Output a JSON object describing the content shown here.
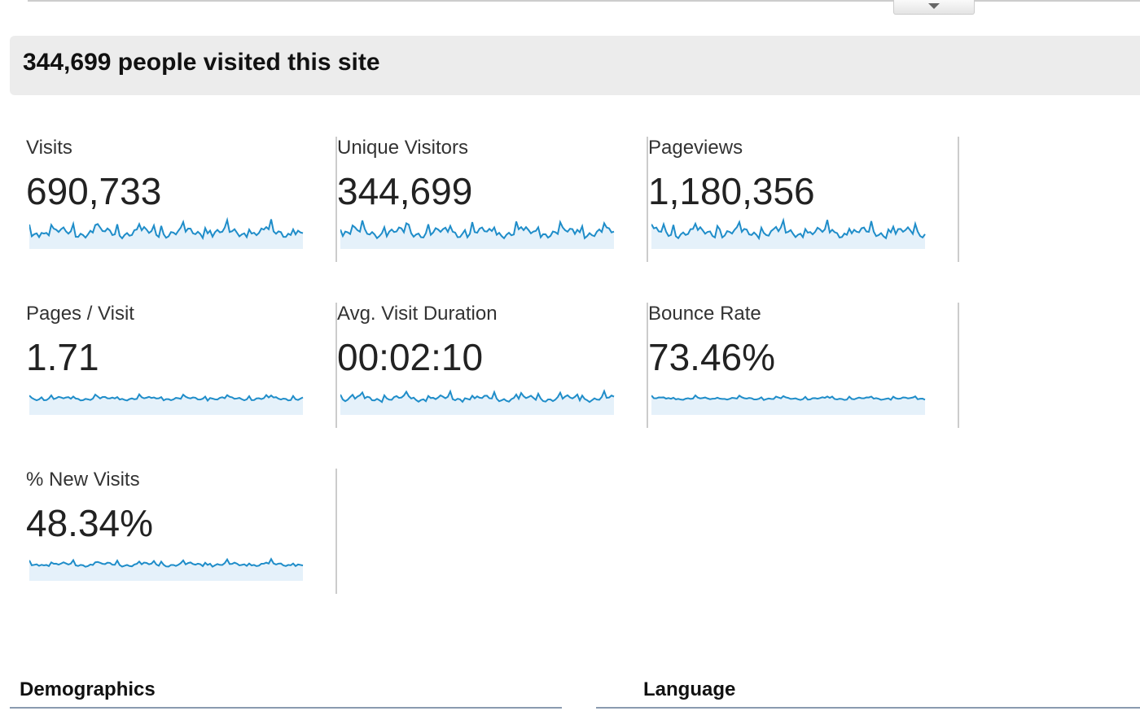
{
  "header": {
    "title": "344,699 people visited this site"
  },
  "metrics": [
    {
      "label": "Visits",
      "value": "690,733"
    },
    {
      "label": "Unique Visitors",
      "value": "344,699"
    },
    {
      "label": "Pageviews",
      "value": "1,180,356"
    },
    {
      "label": "Pages / Visit",
      "value": "1.71"
    },
    {
      "label": "Avg. Visit Duration",
      "value": "00:02:10"
    },
    {
      "label": "Bounce Rate",
      "value": "73.46%"
    },
    {
      "label": "% New Visits",
      "value": "48.34%"
    }
  ],
  "sections": [
    "Demographics",
    "Language"
  ]
}
